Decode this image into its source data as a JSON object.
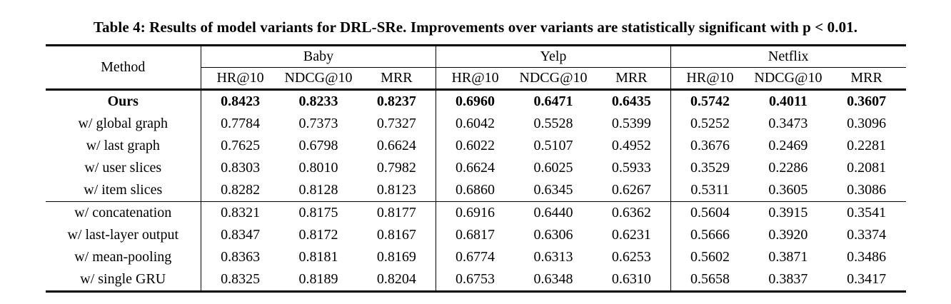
{
  "caption": "Table 4: Results of model variants for DRL-SRe. Improvements over variants are statistically significant with p < 0.01.",
  "table": {
    "method_header": "Method",
    "groups": [
      {
        "label": "Baby",
        "metrics": [
          "HR@10",
          "NDCG@10",
          "MRR"
        ]
      },
      {
        "label": "Yelp",
        "metrics": [
          "HR@10",
          "NDCG@10",
          "MRR"
        ]
      },
      {
        "label": "Netflix",
        "metrics": [
          "HR@10",
          "NDCG@10",
          "MRR"
        ]
      }
    ],
    "rows": [
      {
        "method": "Ours",
        "bold": true,
        "section_start": false,
        "values": [
          "0.8423",
          "0.8233",
          "0.8237",
          "0.6960",
          "0.6471",
          "0.6435",
          "0.5742",
          "0.4011",
          "0.3607"
        ]
      },
      {
        "method": "w/ global graph",
        "bold": false,
        "section_start": false,
        "values": [
          "0.7784",
          "0.7373",
          "0.7327",
          "0.6042",
          "0.5528",
          "0.5399",
          "0.5252",
          "0.3473",
          "0.3096"
        ]
      },
      {
        "method": "w/ last graph",
        "bold": false,
        "section_start": false,
        "values": [
          "0.7625",
          "0.6798",
          "0.6624",
          "0.6022",
          "0.5107",
          "0.4952",
          "0.3676",
          "0.2469",
          "0.2281"
        ]
      },
      {
        "method": "w/ user slices",
        "bold": false,
        "section_start": false,
        "values": [
          "0.8303",
          "0.8010",
          "0.7982",
          "0.6624",
          "0.6025",
          "0.5933",
          "0.3529",
          "0.2286",
          "0.2081"
        ]
      },
      {
        "method": "w/ item slices",
        "bold": false,
        "section_start": false,
        "values": [
          "0.8282",
          "0.8128",
          "0.8123",
          "0.6860",
          "0.6345",
          "0.6267",
          "0.5311",
          "0.3605",
          "0.3086"
        ]
      },
      {
        "method": "w/ concatenation",
        "bold": false,
        "section_start": true,
        "values": [
          "0.8321",
          "0.8175",
          "0.8177",
          "0.6916",
          "0.6440",
          "0.6362",
          "0.5604",
          "0.3915",
          "0.3541"
        ]
      },
      {
        "method": "w/ last-layer output",
        "bold": false,
        "section_start": false,
        "values": [
          "0.8347",
          "0.8172",
          "0.8167",
          "0.6817",
          "0.6306",
          "0.6231",
          "0.5666",
          "0.3920",
          "0.3374"
        ]
      },
      {
        "method": "w/ mean-pooling",
        "bold": false,
        "section_start": false,
        "values": [
          "0.8363",
          "0.8181",
          "0.8169",
          "0.6774",
          "0.6313",
          "0.6253",
          "0.5602",
          "0.3871",
          "0.3486"
        ]
      },
      {
        "method": "w/ single GRU",
        "bold": false,
        "section_start": false,
        "values": [
          "0.8325",
          "0.8189",
          "0.8204",
          "0.6753",
          "0.6348",
          "0.6310",
          "0.5658",
          "0.3837",
          "0.3417"
        ]
      }
    ]
  }
}
